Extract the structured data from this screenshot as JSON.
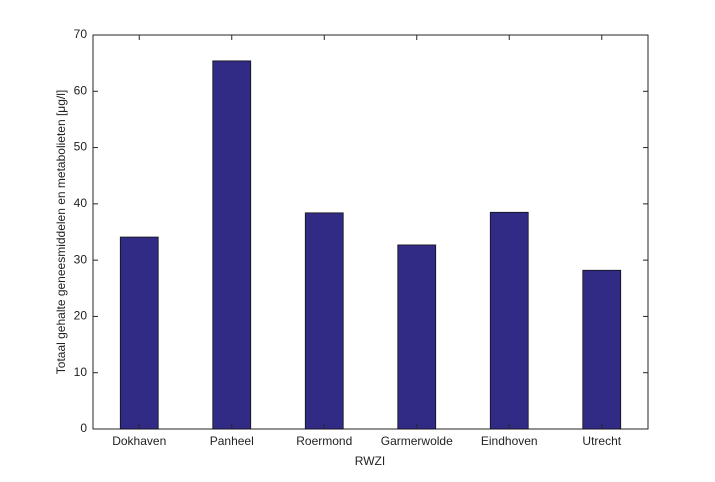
{
  "chart_data": {
    "type": "bar",
    "x_label": "RWZI",
    "y_label": "Totaal gehalte geneesmiddelen en metabolieten [μg/l]",
    "categories": [
      "Dokhaven",
      "Panheel",
      "Roermond",
      "Garmerwolde",
      "Eindhoven",
      "Utrecht"
    ],
    "values": [
      34.1,
      65.4,
      38.4,
      32.7,
      38.5,
      28.2
    ],
    "color": "#312b85",
    "ylim": [
      0,
      70
    ],
    "yticks": [
      0,
      10,
      20,
      30,
      40,
      50,
      60,
      70
    ],
    "grid": false
  }
}
